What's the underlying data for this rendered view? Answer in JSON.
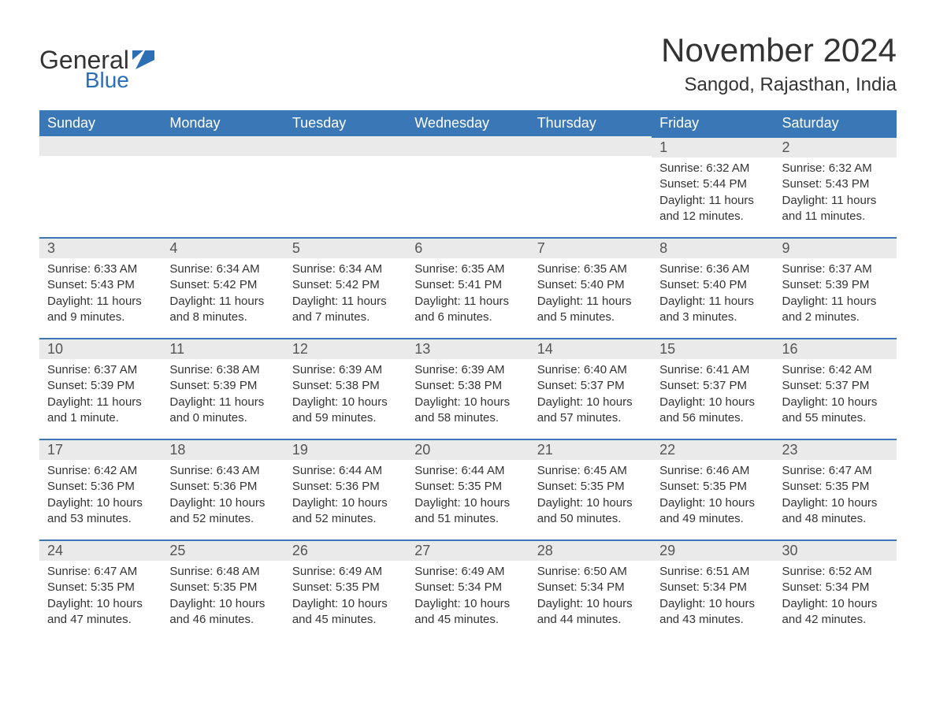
{
  "logo": {
    "text_general": "General",
    "text_blue": "Blue",
    "flag_color": "#2d6fb5"
  },
  "title": {
    "month": "November 2024",
    "location": "Sangod, Rajasthan, India"
  },
  "colors": {
    "header_bg": "#3a77b7",
    "header_text": "#ffffff",
    "day_number_bg": "#eaeaea",
    "day_number_border": "#3a77b7",
    "body_text": "#333333",
    "page_bg": "#ffffff"
  },
  "typography": {
    "month_title_fontsize": 42,
    "location_fontsize": 24,
    "weekday_fontsize": 18,
    "day_number_fontsize": 18,
    "cell_fontsize": 15
  },
  "weekdays": [
    "Sunday",
    "Monday",
    "Tuesday",
    "Wednesday",
    "Thursday",
    "Friday",
    "Saturday"
  ],
  "weeks": [
    [
      null,
      null,
      null,
      null,
      null,
      {
        "day": "1",
        "sunrise": "Sunrise: 6:32 AM",
        "sunset": "Sunset: 5:44 PM",
        "daylight": "Daylight: 11 hours and 12 minutes."
      },
      {
        "day": "2",
        "sunrise": "Sunrise: 6:32 AM",
        "sunset": "Sunset: 5:43 PM",
        "daylight": "Daylight: 11 hours and 11 minutes."
      }
    ],
    [
      {
        "day": "3",
        "sunrise": "Sunrise: 6:33 AM",
        "sunset": "Sunset: 5:43 PM",
        "daylight": "Daylight: 11 hours and 9 minutes."
      },
      {
        "day": "4",
        "sunrise": "Sunrise: 6:34 AM",
        "sunset": "Sunset: 5:42 PM",
        "daylight": "Daylight: 11 hours and 8 minutes."
      },
      {
        "day": "5",
        "sunrise": "Sunrise: 6:34 AM",
        "sunset": "Sunset: 5:42 PM",
        "daylight": "Daylight: 11 hours and 7 minutes."
      },
      {
        "day": "6",
        "sunrise": "Sunrise: 6:35 AM",
        "sunset": "Sunset: 5:41 PM",
        "daylight": "Daylight: 11 hours and 6 minutes."
      },
      {
        "day": "7",
        "sunrise": "Sunrise: 6:35 AM",
        "sunset": "Sunset: 5:40 PM",
        "daylight": "Daylight: 11 hours and 5 minutes."
      },
      {
        "day": "8",
        "sunrise": "Sunrise: 6:36 AM",
        "sunset": "Sunset: 5:40 PM",
        "daylight": "Daylight: 11 hours and 3 minutes."
      },
      {
        "day": "9",
        "sunrise": "Sunrise: 6:37 AM",
        "sunset": "Sunset: 5:39 PM",
        "daylight": "Daylight: 11 hours and 2 minutes."
      }
    ],
    [
      {
        "day": "10",
        "sunrise": "Sunrise: 6:37 AM",
        "sunset": "Sunset: 5:39 PM",
        "daylight": "Daylight: 11 hours and 1 minute."
      },
      {
        "day": "11",
        "sunrise": "Sunrise: 6:38 AM",
        "sunset": "Sunset: 5:39 PM",
        "daylight": "Daylight: 11 hours and 0 minutes."
      },
      {
        "day": "12",
        "sunrise": "Sunrise: 6:39 AM",
        "sunset": "Sunset: 5:38 PM",
        "daylight": "Daylight: 10 hours and 59 minutes."
      },
      {
        "day": "13",
        "sunrise": "Sunrise: 6:39 AM",
        "sunset": "Sunset: 5:38 PM",
        "daylight": "Daylight: 10 hours and 58 minutes."
      },
      {
        "day": "14",
        "sunrise": "Sunrise: 6:40 AM",
        "sunset": "Sunset: 5:37 PM",
        "daylight": "Daylight: 10 hours and 57 minutes."
      },
      {
        "day": "15",
        "sunrise": "Sunrise: 6:41 AM",
        "sunset": "Sunset: 5:37 PM",
        "daylight": "Daylight: 10 hours and 56 minutes."
      },
      {
        "day": "16",
        "sunrise": "Sunrise: 6:42 AM",
        "sunset": "Sunset: 5:37 PM",
        "daylight": "Daylight: 10 hours and 55 minutes."
      }
    ],
    [
      {
        "day": "17",
        "sunrise": "Sunrise: 6:42 AM",
        "sunset": "Sunset: 5:36 PM",
        "daylight": "Daylight: 10 hours and 53 minutes."
      },
      {
        "day": "18",
        "sunrise": "Sunrise: 6:43 AM",
        "sunset": "Sunset: 5:36 PM",
        "daylight": "Daylight: 10 hours and 52 minutes."
      },
      {
        "day": "19",
        "sunrise": "Sunrise: 6:44 AM",
        "sunset": "Sunset: 5:36 PM",
        "daylight": "Daylight: 10 hours and 52 minutes."
      },
      {
        "day": "20",
        "sunrise": "Sunrise: 6:44 AM",
        "sunset": "Sunset: 5:35 PM",
        "daylight": "Daylight: 10 hours and 51 minutes."
      },
      {
        "day": "21",
        "sunrise": "Sunrise: 6:45 AM",
        "sunset": "Sunset: 5:35 PM",
        "daylight": "Daylight: 10 hours and 50 minutes."
      },
      {
        "day": "22",
        "sunrise": "Sunrise: 6:46 AM",
        "sunset": "Sunset: 5:35 PM",
        "daylight": "Daylight: 10 hours and 49 minutes."
      },
      {
        "day": "23",
        "sunrise": "Sunrise: 6:47 AM",
        "sunset": "Sunset: 5:35 PM",
        "daylight": "Daylight: 10 hours and 48 minutes."
      }
    ],
    [
      {
        "day": "24",
        "sunrise": "Sunrise: 6:47 AM",
        "sunset": "Sunset: 5:35 PM",
        "daylight": "Daylight: 10 hours and 47 minutes."
      },
      {
        "day": "25",
        "sunrise": "Sunrise: 6:48 AM",
        "sunset": "Sunset: 5:35 PM",
        "daylight": "Daylight: 10 hours and 46 minutes."
      },
      {
        "day": "26",
        "sunrise": "Sunrise: 6:49 AM",
        "sunset": "Sunset: 5:35 PM",
        "daylight": "Daylight: 10 hours and 45 minutes."
      },
      {
        "day": "27",
        "sunrise": "Sunrise: 6:49 AM",
        "sunset": "Sunset: 5:34 PM",
        "daylight": "Daylight: 10 hours and 45 minutes."
      },
      {
        "day": "28",
        "sunrise": "Sunrise: 6:50 AM",
        "sunset": "Sunset: 5:34 PM",
        "daylight": "Daylight: 10 hours and 44 minutes."
      },
      {
        "day": "29",
        "sunrise": "Sunrise: 6:51 AM",
        "sunset": "Sunset: 5:34 PM",
        "daylight": "Daylight: 10 hours and 43 minutes."
      },
      {
        "day": "30",
        "sunrise": "Sunrise: 6:52 AM",
        "sunset": "Sunset: 5:34 PM",
        "daylight": "Daylight: 10 hours and 42 minutes."
      }
    ]
  ]
}
